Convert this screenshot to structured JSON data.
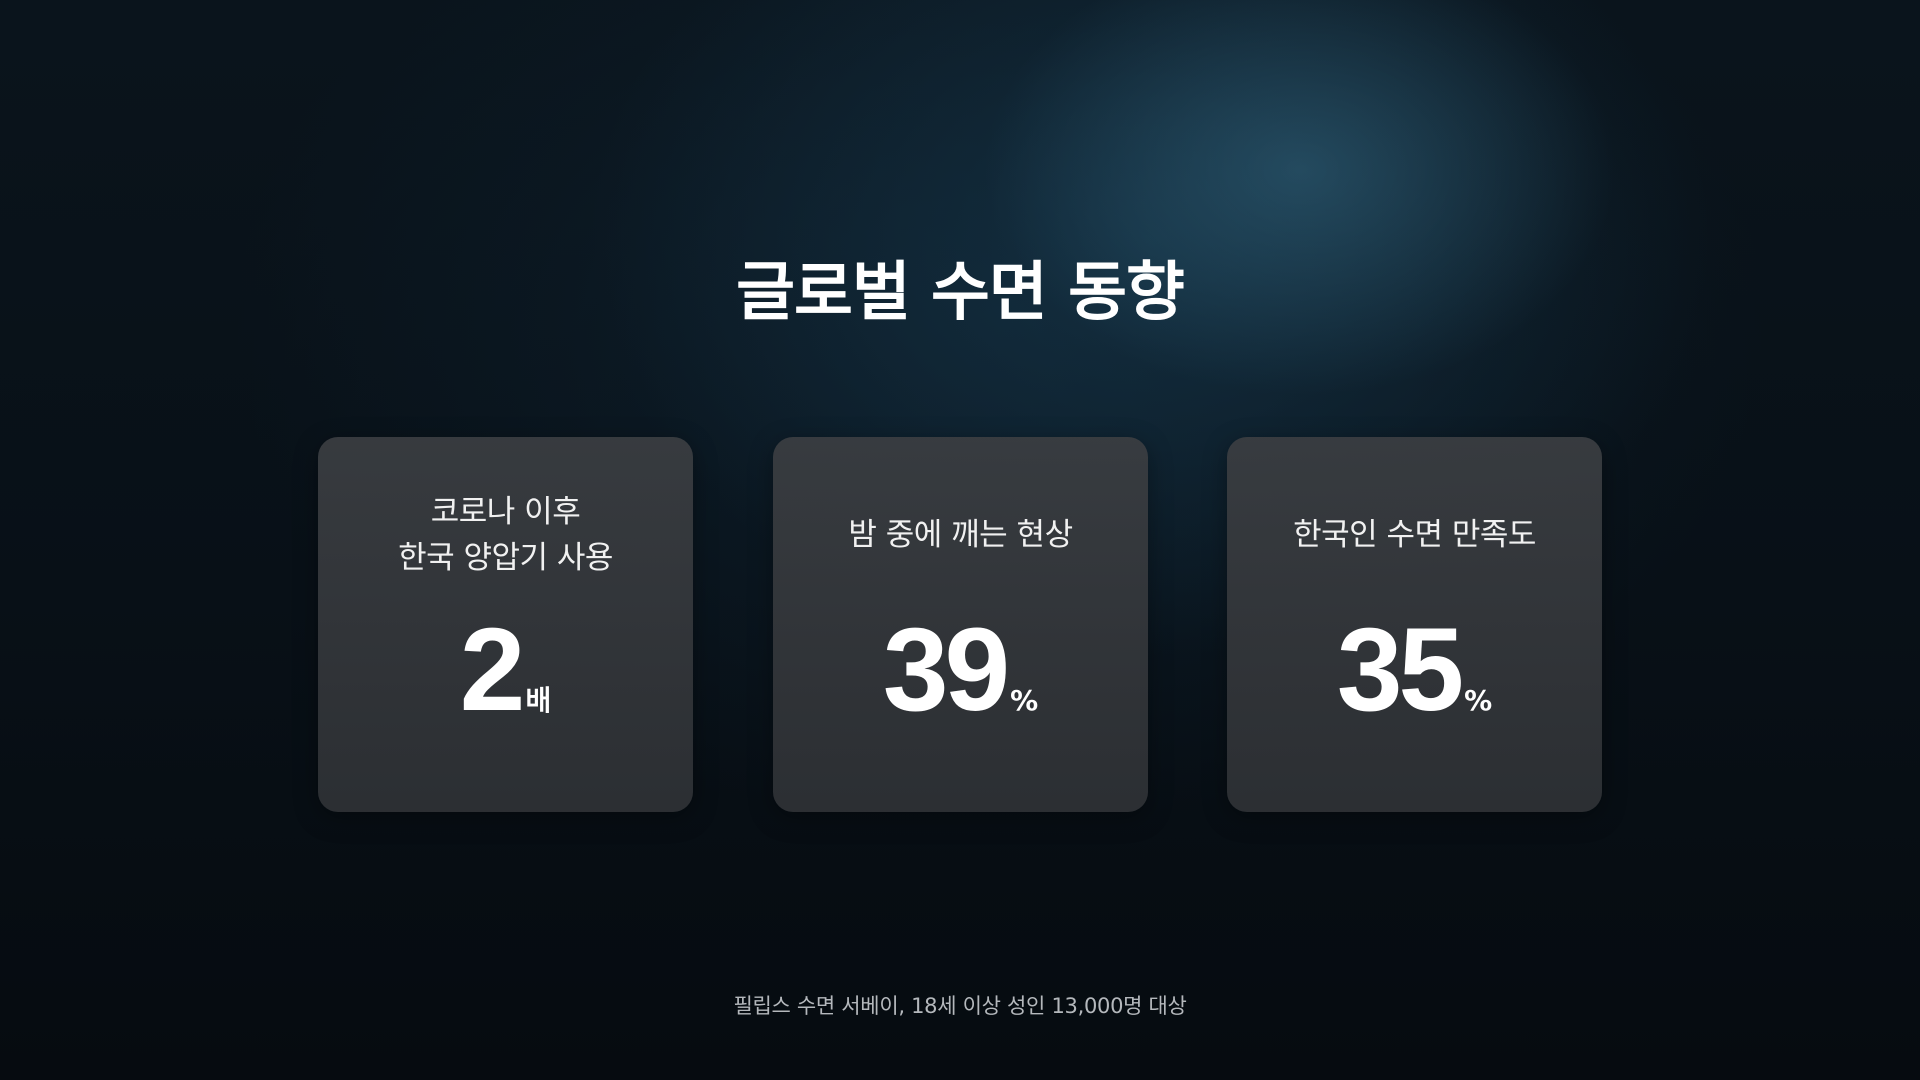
{
  "title": "글로벌 수면 동향",
  "cards": [
    {
      "label_lines": [
        "코로나 이후",
        "한국 양압기 사용"
      ],
      "value": "2",
      "unit": "배"
    },
    {
      "label_lines": [
        "밤 중에 깨는 현상"
      ],
      "value": "39",
      "unit": "%"
    },
    {
      "label_lines": [
        "한국인 수면 만족도"
      ],
      "value": "35",
      "unit": "%"
    }
  ],
  "footnote": "필립스 수면 서베이, 18세 이상 성인 13,000명 대상"
}
